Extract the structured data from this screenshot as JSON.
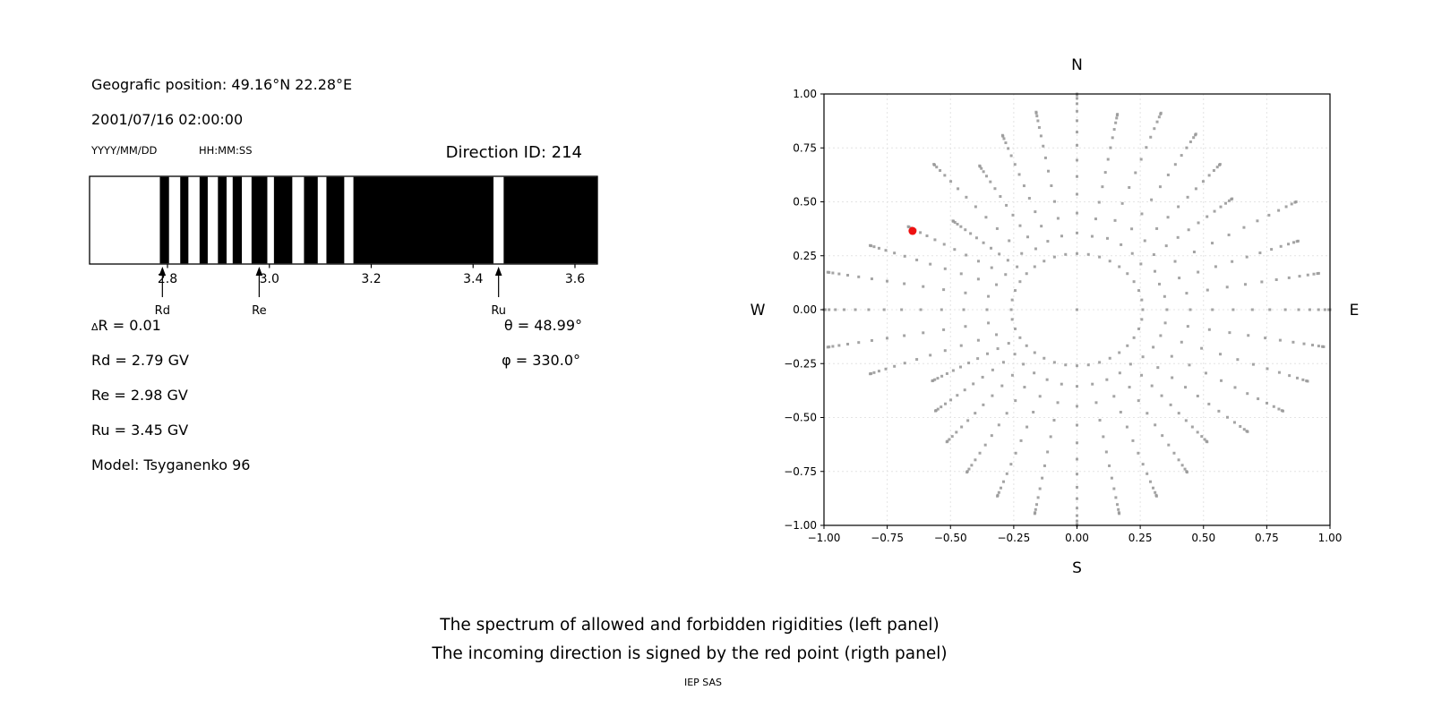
{
  "left_panel": {
    "geo_position": "Geografic position: 49.16°N 22.28°E",
    "datetime": "2001/07/16 02:00:00",
    "date_format_hint": "YYYY/MM/DD",
    "time_format_hint": "HH:MM:SS",
    "direction_id": "Direction ID: 214",
    "info": {
      "delta_sym": "Δ",
      "delta_rest": "R = 0.01",
      "rd": "Rd = 2.79 GV",
      "re": "Re = 2.98 GV",
      "ru": "Ru = 3.45 GV",
      "model": "Model: Tsyganenko 96",
      "theta": "θ = 48.99°",
      "phi": "φ = 330.0°"
    }
  },
  "right_panel": {
    "labels": {
      "north": "N",
      "south": "S",
      "west": "W",
      "east": "E"
    }
  },
  "caption": {
    "line1": "The spectrum of allowed and forbidden rigidities (left panel)",
    "line2": "The incoming direction is signed by the red point (rigth panel)",
    "credit": "IEP SAS"
  },
  "chart_data": [
    {
      "type": "bar",
      "title": "Spectrum of allowed (black) and forbidden (white) rigidities",
      "xlim": [
        2.647,
        3.644
      ],
      "xticks": [
        2.8,
        3.0,
        3.2,
        3.4,
        3.6
      ],
      "delta_r_gv": 0.01,
      "rd_gv": 2.79,
      "re_gv": 2.98,
      "ru_gv": 3.45,
      "allowed_intervals_gv": [
        [
          2.785,
          2.803
        ],
        [
          2.825,
          2.841
        ],
        [
          2.863,
          2.879
        ],
        [
          2.899,
          2.916
        ],
        [
          2.928,
          2.946
        ],
        [
          2.965,
          2.996
        ],
        [
          3.009,
          3.045
        ],
        [
          3.068,
          3.095
        ],
        [
          3.112,
          3.147
        ],
        [
          3.165,
          3.44
        ],
        [
          3.46,
          3.644
        ]
      ],
      "markers": [
        {
          "label": "Rd",
          "x_gv": 2.79
        },
        {
          "label": "Re",
          "x_gv": 2.98
        },
        {
          "label": "Ru",
          "x_gv": 3.45
        }
      ],
      "bar_color": "#000000",
      "background": "#ffffff"
    },
    {
      "type": "scatter",
      "title": "Incoming direction map",
      "xlim": [
        -1,
        1
      ],
      "ylim": [
        -1,
        1
      ],
      "xticks": [
        -1,
        -0.75,
        -0.5,
        -0.25,
        0,
        0.25,
        0.5,
        0.75,
        1
      ],
      "yticks": [
        -1,
        -0.75,
        -0.5,
        -0.25,
        0,
        0.25,
        0.5,
        0.75,
        1
      ],
      "grid": true,
      "grid_color": "#e4e4e4",
      "compass_labels": {
        "top": "N",
        "bottom": "S",
        "left": "W",
        "right": "E"
      },
      "gray_dot_color": "#9a9a9a",
      "red_point": {
        "x": -0.65,
        "y": 0.365,
        "color": "#ee1111"
      },
      "direction_grid": {
        "center_dot": [
          0,
          0
        ],
        "ring_radius": 0.26,
        "azimuth_step_deg": 10,
        "zenith_min_deg": 15,
        "dots_per_spoke": 13,
        "spoke_outer_radii": [
          1.0,
          0.97,
          0.93,
          1.0,
          0.8,
          0.88,
          0.94,
          0.97,
          0.92,
          1.0,
          0.93,
          0.86,
          0.77,
          0.88,
          0.64,
          0.77,
          0.87,
          1.0,
          1.0,
          1.0,
          0.87,
          0.66,
          0.73,
          0.8,
          0.87,
          0.92,
          0.96,
          1.0,
          0.96,
          0.92,
          0.87,
          0.8,
          0.88,
          0.94,
          0.97,
          0.99
        ]
      }
    }
  ]
}
